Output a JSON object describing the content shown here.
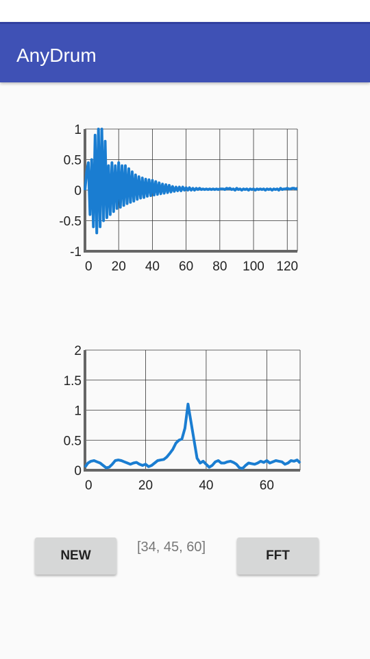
{
  "app": {
    "title": "AnyDrum"
  },
  "chart_data": [
    {
      "type": "line",
      "title": "",
      "xlabel": "",
      "ylabel": "",
      "xlim": [
        0,
        126
      ],
      "ylim": [
        -1,
        1
      ],
      "x_ticks": [
        "0",
        "20",
        "40",
        "60",
        "80",
        "100",
        "120"
      ],
      "y_ticks": [
        "1",
        "0.5",
        "0",
        "-0.5",
        "-1"
      ],
      "grid": true,
      "line_color": "#1a7dd1",
      "series": [
        {
          "x": [
            0,
            1,
            2,
            3,
            4,
            5,
            6,
            7,
            8,
            9,
            10,
            11,
            12,
            13,
            14,
            15,
            16,
            17,
            18,
            19,
            20,
            21,
            22,
            23,
            24,
            25,
            26,
            27,
            28,
            29,
            30,
            31,
            32,
            33,
            34,
            35,
            36,
            37,
            38,
            39,
            40,
            41,
            42,
            43,
            44,
            45,
            46,
            47,
            48,
            49,
            50,
            51,
            52,
            53,
            54,
            55,
            56,
            57,
            58,
            59,
            60,
            61,
            62,
            63,
            64,
            65,
            66,
            67,
            68,
            69,
            70,
            71,
            72,
            73,
            74,
            75,
            76,
            77,
            78,
            79,
            80,
            81,
            82,
            83,
            84,
            85,
            86,
            87,
            88,
            89,
            90,
            91,
            92,
            93,
            94,
            95,
            96,
            97,
            98,
            99,
            100,
            101,
            102,
            103,
            104,
            105,
            106,
            107,
            108,
            109,
            110,
            111,
            112,
            113,
            114,
            115,
            116,
            117,
            118,
            119,
            120,
            121,
            122,
            123,
            124,
            125,
            126
          ],
          "y": [
            0,
            0.3,
            0.45,
            -0.4,
            0.5,
            -0.6,
            0.9,
            -0.7,
            1.0,
            -0.6,
            1.0,
            -0.5,
            0.8,
            -0.45,
            0.4,
            -0.4,
            0.45,
            -0.35,
            0.4,
            -0.3,
            0.45,
            -0.28,
            0.4,
            -0.25,
            0.4,
            -0.22,
            0.35,
            -0.2,
            0.3,
            -0.18,
            0.25,
            -0.15,
            0.22,
            -0.13,
            0.2,
            -0.12,
            0.18,
            -0.1,
            0.17,
            -0.09,
            0.16,
            -0.08,
            0.14,
            -0.07,
            0.12,
            -0.06,
            0.1,
            -0.05,
            0.09,
            -0.04,
            0.08,
            -0.03,
            0.06,
            -0.02,
            0.05,
            -0.01,
            0.05,
            -0.01,
            0.05,
            0.0,
            0.04,
            0.0,
            0.04,
            0.0,
            0.03,
            0.0,
            0.03,
            0.01,
            0.03,
            0.01,
            0.02,
            0.01,
            0.02,
            0.01,
            0.02,
            0.01,
            0.02,
            0.01,
            0.02,
            0.01,
            0.02,
            0.02,
            0.02,
            0.01,
            0.03,
            0.02,
            0.03,
            0.01,
            0.02,
            0.0,
            0.03,
            0.01,
            0.02,
            0.0,
            0.02,
            0.01,
            0.02,
            0.0,
            0.02,
            0.01,
            0.02,
            0.0,
            0.02,
            0.01,
            0.02,
            0.01,
            0.02,
            0.0,
            0.02,
            0.01,
            0.02,
            0.0,
            0.02,
            0.01,
            0.02,
            0.0,
            0.03,
            0.01,
            0.02,
            0.02,
            0.03,
            0.02,
            0.02,
            0.03,
            0.03,
            0.02,
            0.03
          ]
        }
      ]
    },
    {
      "type": "line",
      "title": "",
      "xlabel": "",
      "ylabel": "",
      "xlim": [
        0,
        71
      ],
      "ylim": [
        0,
        2
      ],
      "x_ticks": [
        "0",
        "20",
        "40",
        "60"
      ],
      "y_ticks": [
        "2",
        "1.5",
        "1",
        "0.5",
        "0"
      ],
      "grid": true,
      "line_color": "#1a7dd1",
      "series": [
        {
          "x": [
            0,
            1,
            2,
            3,
            4,
            5,
            6,
            7,
            8,
            9,
            10,
            11,
            12,
            13,
            14,
            15,
            16,
            17,
            18,
            19,
            20,
            21,
            22,
            23,
            24,
            25,
            26,
            27,
            28,
            29,
            30,
            31,
            32,
            33,
            34,
            35,
            36,
            37,
            38,
            39,
            40,
            41,
            42,
            43,
            44,
            45,
            46,
            47,
            48,
            49,
            50,
            51,
            52,
            53,
            54,
            55,
            56,
            57,
            58,
            59,
            60,
            61,
            62,
            63,
            64,
            65,
            66,
            67,
            68,
            69,
            70,
            71
          ],
          "y": [
            0.05,
            0.12,
            0.15,
            0.16,
            0.14,
            0.12,
            0.08,
            0.04,
            0.05,
            0.1,
            0.16,
            0.17,
            0.16,
            0.14,
            0.12,
            0.1,
            0.12,
            0.13,
            0.1,
            0.08,
            0.1,
            0.06,
            0.08,
            0.12,
            0.16,
            0.17,
            0.18,
            0.22,
            0.28,
            0.35,
            0.45,
            0.5,
            0.52,
            0.7,
            1.1,
            0.8,
            0.5,
            0.2,
            0.12,
            0.15,
            0.1,
            0.05,
            0.08,
            0.14,
            0.16,
            0.12,
            0.12,
            0.14,
            0.15,
            0.13,
            0.1,
            0.04,
            0.03,
            0.08,
            0.12,
            0.11,
            0.1,
            0.12,
            0.15,
            0.13,
            0.16,
            0.12,
            0.14,
            0.16,
            0.15,
            0.14,
            0.1,
            0.12,
            0.16,
            0.15,
            0.17,
            0.12
          ]
        }
      ]
    }
  ],
  "buttons": {
    "new_label": "NEW",
    "fft_label": "FFT"
  },
  "peaks_text": "[34, 45, 60]"
}
